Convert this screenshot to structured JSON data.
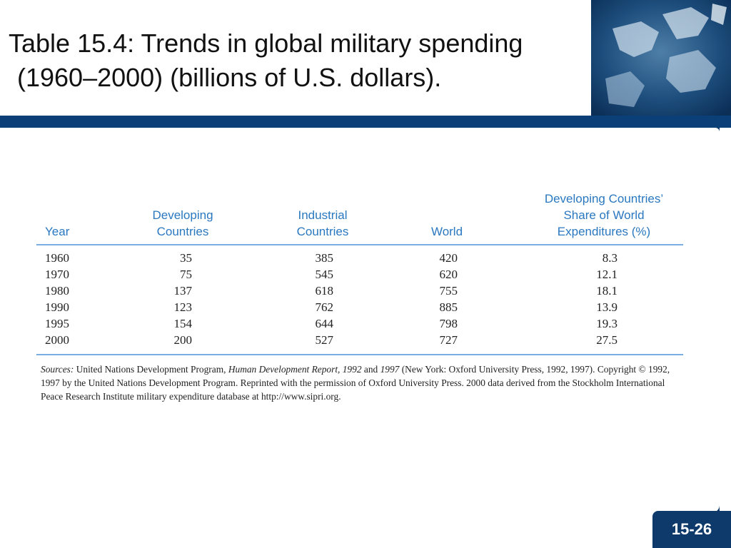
{
  "title": {
    "line1": "Table 15.4: Trends in global military spending",
    "line2": "(1960–2000) (billions of U.S. dollars)."
  },
  "table": {
    "headers": {
      "year": [
        "Year"
      ],
      "developing": [
        "Developing",
        "Countries"
      ],
      "industrial": [
        "Industrial",
        "Countries"
      ],
      "world": [
        "World"
      ],
      "share": [
        "Developing Countries’",
        "Share of World",
        "Expenditures (%)"
      ]
    },
    "rows": [
      {
        "year": "1960",
        "developing": "35",
        "industrial": "385",
        "world": "420",
        "share": "8.3"
      },
      {
        "year": "1970",
        "developing": "75",
        "industrial": "545",
        "world": "620",
        "share": "12.1"
      },
      {
        "year": "1980",
        "developing": "137",
        "industrial": "618",
        "world": "755",
        "share": "18.1"
      },
      {
        "year": "1990",
        "developing": "123",
        "industrial": "762",
        "world": "885",
        "share": "13.9"
      },
      {
        "year": "1995",
        "developing": "154",
        "industrial": "644",
        "world": "798",
        "share": "19.3"
      },
      {
        "year": "2000",
        "developing": "200",
        "industrial": "527",
        "world": "727",
        "share": "27.5"
      }
    ]
  },
  "sources": {
    "label": "Sources:",
    "text1": "United Nations Development Program,",
    "report_title": "Human Development Report, 1992",
    "and": "and",
    "year2": "1997",
    "text2": "(New York: Oxford University Press, 1992, 1997). Copyright © 1992, 1997 by the United Nations Development Program. Reprinted with the permission of Oxford University Press. 2000 data derived from the Stockholm International Peace Research Institute military expenditure database at http://www.sipri.org."
  },
  "page_number": "15-26",
  "colors": {
    "frame": "#0d3a6a",
    "header_text": "#2a78c0",
    "rule": "#79aee0"
  }
}
